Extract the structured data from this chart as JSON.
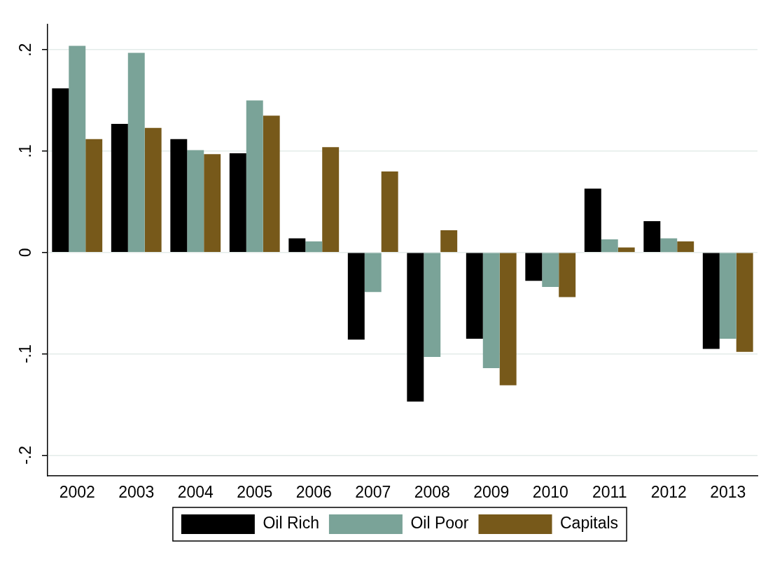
{
  "chart_data": {
    "type": "bar",
    "categories": [
      "2002",
      "2003",
      "2004",
      "2005",
      "2006",
      "2007",
      "2008",
      "2009",
      "2010",
      "2011",
      "2012",
      "2013"
    ],
    "series": [
      {
        "name": "Oil Rich",
        "color": "#000000",
        "values": [
          0.162,
          0.127,
          0.112,
          0.098,
          0.014,
          -0.086,
          -0.147,
          -0.085,
          -0.028,
          0.063,
          0.031,
          -0.095
        ]
      },
      {
        "name": "Oil Poor",
        "color": "#7aa398",
        "values": [
          0.204,
          0.197,
          0.101,
          0.15,
          0.011,
          -0.039,
          -0.103,
          -0.114,
          -0.034,
          0.013,
          0.014,
          -0.085
        ]
      },
      {
        "name": "Capitals",
        "color": "#77591a",
        "values": [
          0.112,
          0.123,
          0.097,
          0.135,
          0.104,
          0.08,
          0.022,
          -0.131,
          -0.044,
          0.005,
          0.011,
          -0.098
        ]
      }
    ],
    "ylim": [
      -0.22,
      0.225
    ],
    "yticks": [
      {
        "value": -0.2,
        "label": "-.2"
      },
      {
        "value": -0.1,
        "label": "-.1"
      },
      {
        "value": 0,
        "label": "0"
      },
      {
        "value": 0.1,
        "label": ".1"
      },
      {
        "value": 0.2,
        "label": ".2"
      }
    ],
    "grid": "y",
    "legend": "bottom"
  }
}
